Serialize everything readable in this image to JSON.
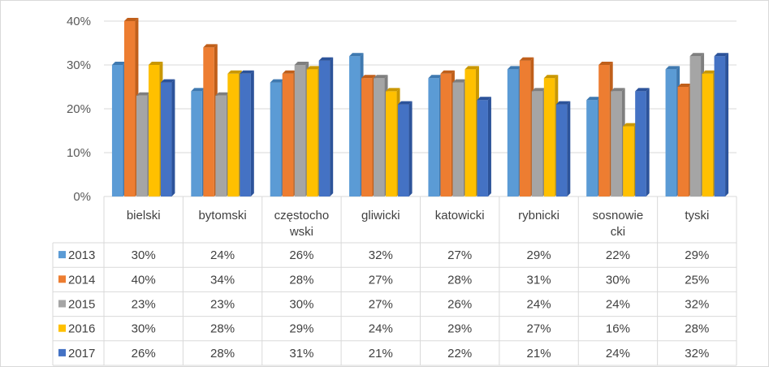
{
  "chart_data": {
    "type": "bar",
    "title": "",
    "xlabel": "",
    "ylabel": "",
    "ylim": [
      0,
      40
    ],
    "yticks": [
      "0%",
      "10%",
      "20%",
      "30%",
      "40%"
    ],
    "grid": true,
    "legend_placement": "data-table-left",
    "categories": [
      [
        "bielski"
      ],
      [
        "bytomski"
      ],
      [
        "częstocho",
        "wski"
      ],
      [
        "gliwicki"
      ],
      [
        "katowicki"
      ],
      [
        "rybnicki"
      ],
      [
        "sosnowie",
        "cki"
      ],
      [
        "tyski"
      ]
    ],
    "series": [
      {
        "name": "2013",
        "color": "#5B9BD5",
        "dark": "#3F79B0",
        "values": [
          30,
          24,
          26,
          32,
          27,
          29,
          22,
          29
        ]
      },
      {
        "name": "2014",
        "color": "#ED7D31",
        "dark": "#C05F1A",
        "values": [
          40,
          34,
          28,
          27,
          28,
          31,
          30,
          25
        ]
      },
      {
        "name": "2015",
        "color": "#A5A5A5",
        "dark": "#7F7F7F",
        "values": [
          23,
          23,
          30,
          27,
          26,
          24,
          24,
          32
        ]
      },
      {
        "name": "2016",
        "color": "#FFC000",
        "dark": "#C99700",
        "values": [
          30,
          28,
          29,
          24,
          29,
          27,
          16,
          28
        ]
      },
      {
        "name": "2017",
        "color": "#4472C4",
        "dark": "#2C539A",
        "values": [
          26,
          28,
          31,
          21,
          22,
          21,
          24,
          32
        ]
      }
    ],
    "value_suffix": "%"
  }
}
